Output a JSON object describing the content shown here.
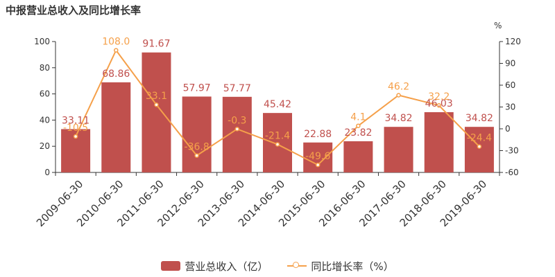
{
  "title": "中报营业总收入及同比增长率",
  "unit_right": "%",
  "legend": {
    "bar_label": "营业总收入（亿）",
    "line_label": "同比增长率（%）"
  },
  "colors": {
    "bar": "#c0504d",
    "bar_label": "#c0504d",
    "line": "#f5a04a",
    "axis": "#333333",
    "text": "#333333"
  },
  "chart_data": {
    "type": "bar",
    "title": "中报营业总收入及同比增长率",
    "categories": [
      "2009-06-30",
      "2010-06-30",
      "2011-06-30",
      "2012-06-30",
      "2013-06-30",
      "2014-06-30",
      "2015-06-30",
      "2016-06-30",
      "2017-06-30",
      "2018-06-30",
      "2019-06-30"
    ],
    "series": [
      {
        "name": "营业总收入（亿）",
        "type": "bar",
        "axis": "left",
        "values": [
          33.11,
          68.86,
          91.67,
          57.97,
          57.77,
          45.42,
          22.88,
          23.82,
          34.82,
          46.03,
          34.82
        ],
        "labels": [
          "33.11",
          "68.86",
          "91.67",
          "57.97",
          "57.77",
          "45.42",
          "22.88",
          "23.82",
          "34.82",
          "46.03",
          "34.82"
        ]
      },
      {
        "name": "同比增长率（%）",
        "type": "line",
        "axis": "right",
        "values": [
          -10.5,
          108.0,
          33.1,
          -36.8,
          -0.3,
          -21.4,
          -49.6,
          4.1,
          46.2,
          32.2,
          -24.4
        ],
        "labels": [
          "-10.5",
          "108.0",
          "33.1",
          "-36.8",
          "-0.3",
          "-21.4",
          "-49.6",
          "4.1",
          "46.2",
          "32.2",
          "-24.4"
        ]
      }
    ],
    "y_left": {
      "min": 0,
      "max": 100,
      "ticks": [
        "0",
        "20",
        "40",
        "60",
        "80",
        "100"
      ]
    },
    "y_right": {
      "min": -60,
      "max": 120,
      "ticks": [
        "-60",
        "-30",
        "0",
        "30",
        "60",
        "90",
        "120"
      ]
    },
    "grid": false,
    "legend_position": "bottom"
  }
}
